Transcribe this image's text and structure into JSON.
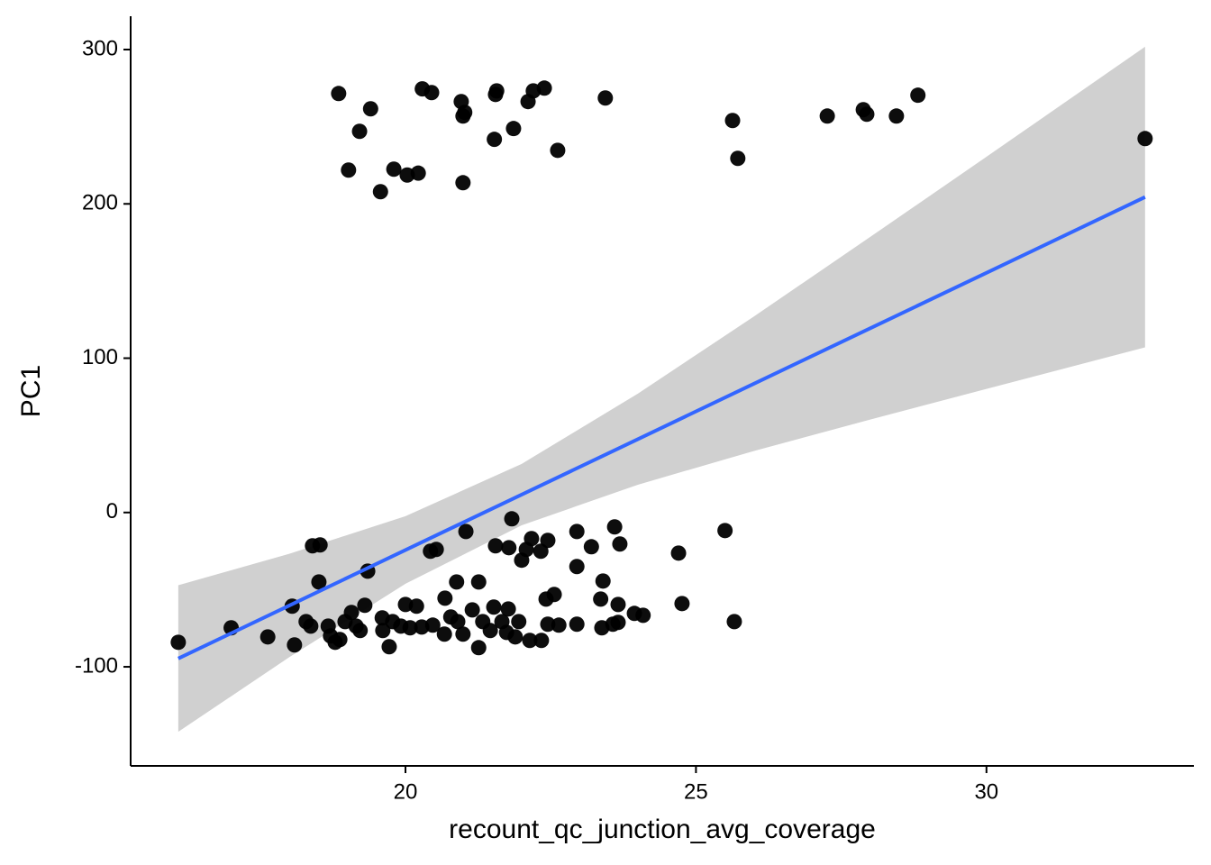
{
  "chart_data": {
    "type": "scatter",
    "x_label": "recount_qc_junction_avg_coverage",
    "y_label": "PC1",
    "xlim": [
      15.27,
      33.57
    ],
    "ylim": [
      -164.2,
      321.6
    ],
    "xticks": [
      20,
      25,
      30
    ],
    "yticks": [
      -100,
      0,
      100,
      200,
      300
    ],
    "grid": false,
    "points": {
      "color": "#000000",
      "x": [
        18.85,
        19.4,
        19.21,
        19.02,
        19.57,
        19.8,
        20.03,
        20.22,
        20.29,
        20.45,
        20.96,
        20.99,
        21.02,
        20.99,
        21.55,
        21.57,
        21.53,
        21.86,
        22.11,
        22.2,
        22.39,
        22.62,
        23.44,
        25.63,
        25.72,
        27.26,
        27.88,
        27.94,
        28.45,
        28.82,
        32.73,
        16.09,
        17.0,
        17.63,
        18.05,
        18.09,
        18.29,
        18.37,
        18.4,
        18.53,
        18.51,
        18.67,
        18.71,
        18.79,
        18.87,
        18.96,
        19.07,
        19.15,
        19.22,
        19.3,
        19.35,
        19.6,
        19.61,
        19.72,
        19.78,
        19.92,
        20.0,
        20.08,
        20.19,
        20.28,
        20.43,
        20.53,
        20.47,
        20.68,
        20.67,
        20.78,
        20.88,
        20.9,
        20.99,
        21.04,
        21.15,
        21.26,
        21.26,
        21.33,
        21.46,
        21.55,
        21.52,
        21.66,
        21.74,
        21.77,
        21.78,
        21.83,
        21.89,
        21.95,
        22.0,
        22.08,
        22.14,
        22.17,
        22.33,
        22.34,
        22.42,
        22.45,
        22.45,
        22.56,
        22.64,
        22.95,
        22.95,
        22.95,
        23.2,
        23.36,
        23.4,
        23.38,
        23.57,
        23.6,
        23.66,
        23.69,
        23.66,
        23.94,
        24.09,
        24.7,
        24.76,
        25.5,
        25.66
      ],
      "y": [
        271.5,
        261.6,
        247.0,
        221.9,
        207.9,
        222.5,
        218.7,
        219.9,
        274.5,
        272.1,
        266.3,
        256.9,
        259.3,
        213.7,
        270.9,
        273.2,
        241.8,
        248.8,
        266.3,
        273.2,
        275.0,
        234.7,
        268.6,
        254.0,
        229.5,
        256.9,
        261.0,
        258.1,
        256.9,
        270.4,
        242.3,
        -84.1,
        -74.7,
        -80.6,
        -60.7,
        -85.8,
        -70.7,
        -73.6,
        -21.6,
        -21.0,
        -45.0,
        -73.6,
        -80.0,
        -84.1,
        -82.3,
        -70.7,
        -64.8,
        -73.6,
        -76.5,
        -60.1,
        -38.0,
        -68.3,
        -76.5,
        -87.0,
        -70.7,
        -73.6,
        -59.6,
        -74.7,
        -60.7,
        -74.2,
        -25.1,
        -23.9,
        -73.0,
        -55.5,
        -78.8,
        -67.7,
        -45.0,
        -70.7,
        -78.8,
        -12.3,
        -63.1,
        -87.6,
        -45.0,
        -70.7,
        -76.5,
        -21.6,
        -61.3,
        -70.7,
        -77.7,
        -62.5,
        -22.8,
        -4.1,
        -80.6,
        -70.7,
        -30.9,
        -23.9,
        -82.9,
        -16.9,
        -25.1,
        -82.9,
        -56.1,
        -72.4,
        -18.1,
        -53.1,
        -73.0,
        -12.3,
        -35.0,
        -72.4,
        -22.2,
        -56.1,
        -44.4,
        -74.7,
        -72.4,
        -9.3,
        -59.6,
        -20.4,
        -71.2,
        -65.4,
        -66.6,
        -26.3,
        -59.0,
        -11.7,
        -70.7
      ]
    },
    "fit": {
      "color": "#3366ff",
      "band_color": "#d0d0d0",
      "x": [
        16.09,
        18,
        20,
        22,
        24,
        26,
        28,
        30,
        32.73
      ],
      "y": [
        -94.6,
        -60.3,
        -24.3,
        11.6,
        47.5,
        83.5,
        119.4,
        155.3,
        204.4
      ],
      "lower": [
        -142.1,
        -93.8,
        -46.2,
        -8.3,
        18.0,
        39.9,
        60.2,
        80.1,
        107.0
      ],
      "upper": [
        -47.1,
        -26.8,
        -2.4,
        31.5,
        77.0,
        127.1,
        178.6,
        230.5,
        301.8
      ]
    }
  }
}
